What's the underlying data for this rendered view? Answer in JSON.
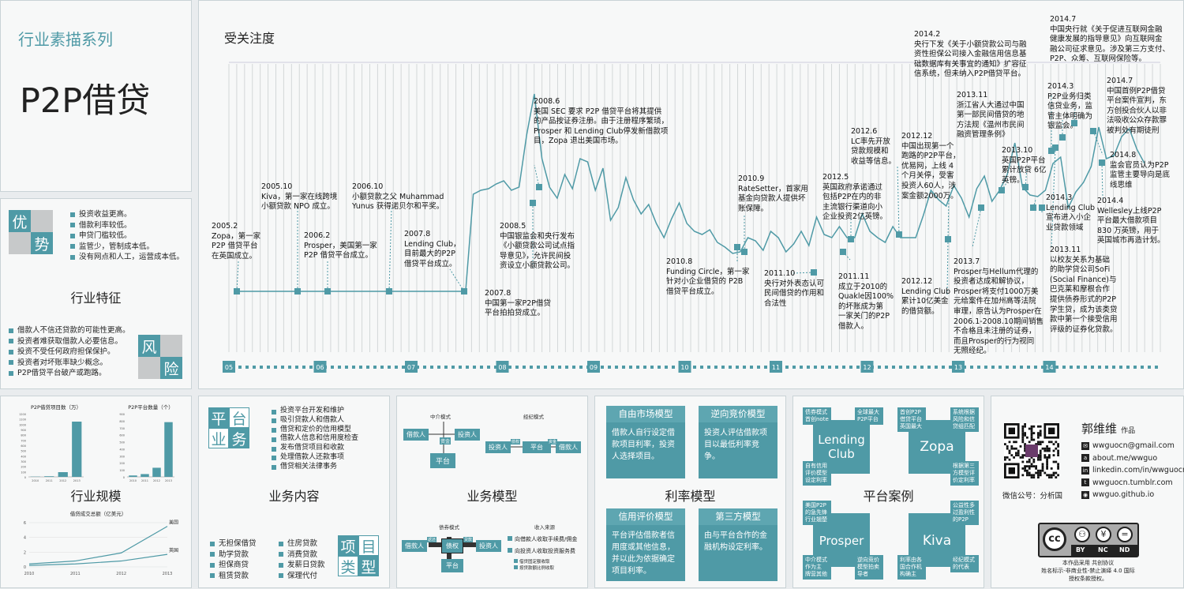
{
  "header": {
    "series": "行业素描系列",
    "title": "P2P借贷"
  },
  "features": {
    "title": "行业特征",
    "adv_chars": [
      "优",
      "势"
    ],
    "adv_items": [
      "投资收益更高。",
      "借款利率较低。",
      "申贷门槛较低。",
      "监管少，管制成本低。",
      "没有网点和人工，运营成本低。"
    ],
    "risk_chars": [
      "风",
      "险"
    ],
    "risk_items": [
      "借款人不信还贷款的可能性更高。",
      "投资者难获取借款人必要信息。",
      "投资不受任何政府担保保护。",
      "投资者对坏账率缺少概念。",
      "P2P借贷平台破产或跑路。"
    ]
  },
  "timeline": {
    "title": "受关注度",
    "years": [
      "05",
      "06",
      "07",
      "08",
      "09",
      "10",
      "11",
      "12",
      "13",
      "14"
    ],
    "events": [
      {
        "text": "2005.2\nZopa，第一家\nP2P 借贷平台\n在英国成立。"
      },
      {
        "text": "2005.10\nKiva，第一家在线跨境\n小额贷款 NPO 成立。"
      },
      {
        "text": "2006.2\nProsper，美国第一家\nP2P 借贷平台成立。"
      },
      {
        "text": "2006.10\n小额贷款之父 Muhammad\nYunus 获得诺贝尔和平奖。"
      },
      {
        "text": "2007.8\nLending Club，\n目前最大的P2P\n借贷平台成立。"
      },
      {
        "text": "2007.8\n中国第一家P2P借贷\n平台拍拍贷成立。"
      },
      {
        "text": "2008.5\n中国银监会和央行发布\n《小额贷款公司试点指\n导意见》，允许民间投\n资设立小额贷款公司。"
      },
      {
        "text": "2008.6\n美国 SEC 要求 P2P 借贷平台将其提供\n的产品按证券注册。由于注册程序繁琐，\nProsper 和 Lending Club停发新借款项\n目，Zopa 退出美国市场。"
      },
      {
        "text": "2010.8\nFunding Circle，第一家\n针对小企业借贷的 P2B\n借贷平台成立。"
      },
      {
        "text": "2010.9\nRateSetter，首家用\n基金向贷款人提供坏\n账保障。"
      },
      {
        "text": "2011.10\n央行对外表态认可\n民间借贷的作用和\n合法性"
      },
      {
        "text": "2011.11\n成立于2010的\nQuakle因100%\n的坏账成为第\n一家关门的P2P\n借款人。"
      },
      {
        "text": "2012.5\n英国政府承诺通过\n包括P2P在内的非\n主流银行渠道向小\n企业投资2亿英镑。"
      },
      {
        "text": "2012.6\nLC率先开放\n贷款规模和\n收益等信息。"
      },
      {
        "text": "2012.12\n中国出现第一个\n跑路的P2P平台，\n优易网，上线 4\n个月关停，受害\n投资人60人，涉\n案金额2000万。"
      },
      {
        "text": "2012.12\nLending Club\n累计10亿美金\n的借贷额。"
      },
      {
        "text": "2013.7\nProsper与Hellum代理的\n投资者达成和解协议，\nProsper将支付1000万美\n元给案件在加州高等法院\n审理，原告认为Prosper在\n2006.1-2008.10期间销售\n不合格且未注册的证券，\n而且Prosper的行为视同\n无照经纪。"
      },
      {
        "text": "2013.10\n英国P2P平台\n累计放贷 6亿\n英镑。"
      },
      {
        "text": "2013.11\n浙江省人大通过中国\n第一部民间借贷的地\n方法规《温州市民间\n融资管理条例》"
      },
      {
        "text": "2014.2\n央行下发《关于小额贷款公司与融\n资性担保公司接入金融信用信息基\n础数据库有关事宜的通知》扩容征\n信系统，但未纳入P2P借贷平台。"
      },
      {
        "text": "2014.3\nLending Club\n宣布进入小企\n业贷款领域"
      },
      {
        "text": "2014.3\nP2P业务归类\n信贷业务，监\n管主体明确为\n银监会。"
      },
      {
        "text": "2014.7\n中国央行就《关于促进互联网金融\n健康发展的指导意见》向互联网金\n融公司征求意见。涉及第三方支付、\nP2P、众筹、互联网保险等。"
      },
      {
        "text": "2014.7\n中国首例P2P借贷\n平台案件宣判，东\n方创投合伙人以非\n法吸收公众存款罪\n被判处有期徒刑"
      },
      {
        "text": "2014.8\n监会官员认为P2P\n监管主要导向是底\n线思维"
      },
      {
        "text": "2014.4\nWellesley上线P2P\n平台最大借款项目\n830 万英镑，用于\n英国城市再造计划。"
      },
      {
        "text": "2013.11\n以校友关系为基础\n的助学贷公司SoFi\n(Social Finance)与\n巴克莱和摩根合作\n提供债券形式的P2P\n学生贷，成为该类贷\n款中第一个接受信用\n评级的证券化贷款。"
      }
    ]
  },
  "scale": {
    "title": "行业规模",
    "chart_data": [
      {
        "type": "bar",
        "title": "P2P借贷项目数（万）",
        "categories": [
          "2010",
          "2011",
          "2012",
          "2013"
        ],
        "values": [
          5,
          12,
          90,
          1050
        ],
        "ylim": [
          0,
          1200
        ],
        "yticks": [
          "1200",
          "1100",
          "1000",
          "900",
          "800",
          "700",
          "600",
          "500",
          "400",
          "300",
          "200",
          "100",
          "0"
        ]
      },
      {
        "type": "bar",
        "title": "P2P平台数量（个）",
        "categories": [
          "2010",
          "2011",
          "2012",
          "2013"
        ],
        "values": [
          20,
          40,
          130,
          780
        ],
        "ylim": [
          0,
          900
        ],
        "yticks": [
          "900",
          "800",
          "700",
          "600",
          "500",
          "400",
          "300",
          "200",
          "100",
          "0"
        ]
      },
      {
        "type": "line",
        "title": "借贷成交总额（亿美元）",
        "x": [
          "2010",
          "2011",
          "2012",
          "2013"
        ],
        "ylim": [
          0,
          6
        ],
        "yticks": [
          "6",
          "4",
          "2",
          "0"
        ],
        "series": [
          {
            "name": "美国",
            "values": [
              0.4,
              0.8,
              1.9,
              5.5
            ]
          },
          {
            "name": "英国",
            "values": [
              0.2,
              0.4,
              0.8,
              1.7
            ]
          }
        ]
      }
    ]
  },
  "business": {
    "title": "业务内容",
    "chars": [
      "平",
      "台",
      "业",
      "务"
    ],
    "items": [
      "投资平台开发和维护",
      "吸引贷款人和借款人",
      "借贷和定价的信用模型",
      "借款人信息和信用度检查",
      "发布借贷项目和收款",
      "处理借款人还款事项",
      "借贷相关法律事务"
    ],
    "proj_chars": [
      "项",
      "目",
      "类",
      "型"
    ],
    "proj_col1": [
      "无担保借贷",
      "助学贷款",
      "担保商贷",
      "租赁贷款"
    ],
    "proj_col2": [
      "住房贷款",
      "消费贷款",
      "发薪日贷款",
      "保理代付"
    ]
  },
  "model": {
    "title": "业务模型",
    "intermediary": "中介模式",
    "brokerage": "经纪模式",
    "borrower": "借款人",
    "investor": "投资人",
    "platform": "平台",
    "fund": "资金",
    "debt": "债权",
    "claim": "债权",
    "cash": "资金",
    "bond_mode": "债券模式",
    "income_title": "收入来源",
    "income1": "向借款人收取手续费/佣金",
    "income2": "向投资人收取投资服务费",
    "legend1": "借贷固定额收取",
    "legend2": "按贷款额比例收取",
    "n_repay": "返还",
    "n_loan": "贷款"
  },
  "rate": {
    "title": "利率模型",
    "boxes": [
      {
        "head": "自由市场模型",
        "body": "借款人自行设定借款项目利率，投资人选择项目。"
      },
      {
        "head": "逆向竞价模型",
        "body": "投资人评估借款项目以最低利率竞争。"
      },
      {
        "head": "信用评价模型",
        "body": "平台评估借款者信用度或其他信息，并以此为依据确定项目利率。"
      },
      {
        "head": "第三方模型",
        "body": "由与平台合作的金融机构设定利率。"
      }
    ]
  },
  "cases": {
    "title": "平台案例",
    "names": [
      "Lending\nClub",
      "Zopa",
      "Prosper",
      "Kiva"
    ],
    "notes": [
      "债券模式\n首创note",
      "全球最大\nP2P平台",
      "自有信用\n评价模型\n设定利率",
      "首创P2P\n借贷平台\n英国最大",
      "系统根据\n风险和信\n贷组匹配",
      "根据第三\n方模型评\n价定利率",
      "美国P2P\n的急先锋\n行业翘楚",
      "中介模式\n作为主\n牌营其他",
      "逆向竞价\n模型拍卖\n导者",
      "公益性多\n过盈利性\n的P2P",
      "利率由各\n国合作机\n构确主",
      "经纪模式\n的代表"
    ]
  },
  "author": {
    "name": "郭维维",
    "suffix": "作品",
    "wechat": "微信公号：分析国",
    "contacts": [
      {
        "icon": "email-icon",
        "glyph": "✉",
        "text": "wwguocn@gmail.com"
      },
      {
        "icon": "about-icon",
        "glyph": "a",
        "text": "about.me/wwguo"
      },
      {
        "icon": "linkedin-icon",
        "glyph": "in",
        "text": "linkedin.com/in/wwguocn"
      },
      {
        "icon": "tumblr-icon",
        "glyph": "t",
        "text": "wwguocn.tumblr.com"
      },
      {
        "icon": "github-icon",
        "glyph": "◉",
        "text": "wwguo.github.io"
      }
    ],
    "cc_labels": [
      "BY",
      "NC",
      "ND"
    ],
    "license1": "本作品采用 共创协议",
    "license2": "姓名标示-非商业性-禁止演绎 4.0 国际",
    "license3": "授权条款授权。"
  },
  "colors": {
    "accent": "#4f9aa6",
    "gray": "#c7c9ca"
  }
}
